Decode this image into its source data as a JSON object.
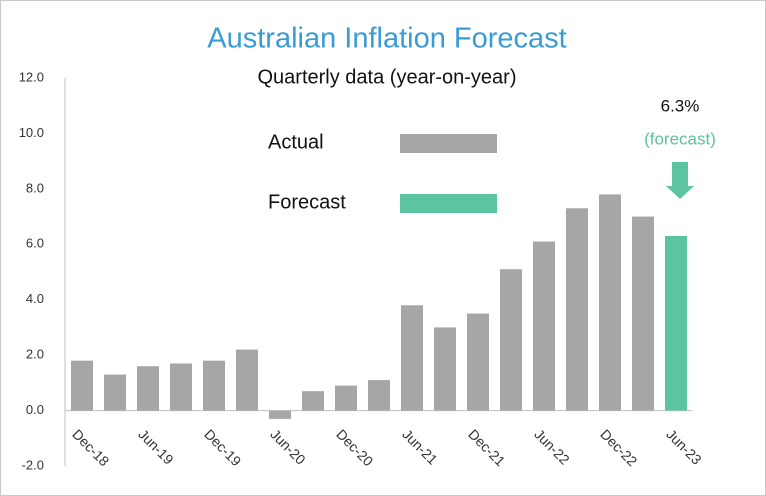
{
  "chart_data": {
    "type": "bar",
    "title": "Australian Inflation Forecast",
    "subtitle": "Quarterly data (year-on-year)",
    "categories": [
      "Dec-18",
      null,
      "Jun-19",
      null,
      "Dec-19",
      null,
      "Jun-20",
      null,
      "Dec-20",
      null,
      "Jun-21",
      null,
      "Dec-21",
      null,
      "Jun-22",
      null,
      "Dec-22",
      null,
      "Jun-23"
    ],
    "series": [
      {
        "name": "Actual",
        "color": "#a6a6a6",
        "values": [
          1.8,
          1.3,
          1.6,
          1.7,
          1.8,
          2.2,
          -0.3,
          0.7,
          0.9,
          1.1,
          3.8,
          3.0,
          3.5,
          5.1,
          6.1,
          7.3,
          7.8,
          7.0,
          null
        ]
      },
      {
        "name": "Forecast",
        "color": "#5cc4a0",
        "values": [
          null,
          null,
          null,
          null,
          null,
          null,
          null,
          null,
          null,
          null,
          null,
          null,
          null,
          null,
          null,
          null,
          null,
          null,
          6.3
        ],
        "value_labels": [
          null,
          null,
          null,
          null,
          null,
          null,
          null,
          null,
          null,
          null,
          null,
          null,
          null,
          null,
          null,
          null,
          null,
          null,
          "6.3%"
        ]
      }
    ],
    "annotation": "(forecast)",
    "ylim": [
      -2,
      12
    ],
    "yticks": [
      {
        "value": -2,
        "label": "-2.0"
      },
      {
        "value": 0,
        "label": "0.0"
      },
      {
        "value": 2,
        "label": "2.0"
      },
      {
        "value": 4,
        "label": "4.0"
      },
      {
        "value": 6,
        "label": "6.0"
      },
      {
        "value": 8,
        "label": "8.0"
      },
      {
        "value": 10,
        "label": "10.0"
      },
      {
        "value": 12,
        "label": "12.0"
      }
    ],
    "grid": false
  }
}
